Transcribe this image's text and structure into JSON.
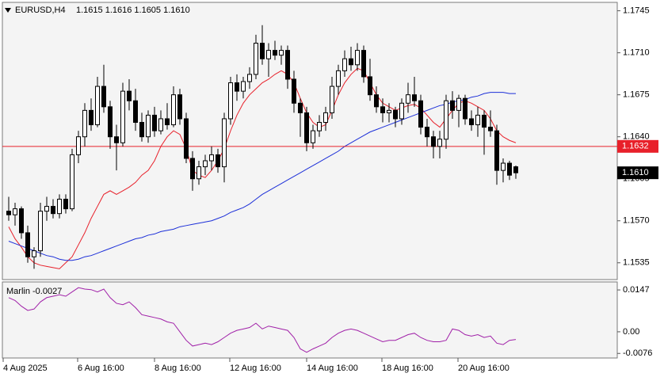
{
  "chart_data": [
    {
      "type": "candlestick",
      "title": "EURUSD,H4",
      "subtitle": "1.1615 1.1616 1.1605 1.1610",
      "ylim": [
        1.1521,
        1.1752
      ],
      "yticks": [
        1.1745,
        {
          "value": 1.171,
          "label": "1.1710"
        },
        1.1675,
        {
          "value": 1.164,
          "label": "1.1640"
        },
        1.1605,
        {
          "value": 1.157,
          "label": "1.1570"
        },
        1.1535
      ],
      "xlabels": [
        "4 Aug 2025",
        "6 Aug 16:00",
        "8 Aug 16:00",
        "12 Aug 16:00",
        "14 Aug 16:00",
        "18 Aug 16:00",
        "20 Aug 16:00"
      ],
      "up_color": "#ffffff",
      "down_color": "#000000",
      "ohlc": [
        [
          1.1578,
          1.159,
          1.157,
          1.1575
        ],
        [
          1.1575,
          1.1585,
          1.1566,
          1.158
        ],
        [
          1.158,
          1.1582,
          1.1555,
          1.156
        ],
        [
          1.156,
          1.1566,
          1.1535,
          1.154
        ],
        [
          1.154,
          1.1548,
          1.153,
          1.1545
        ],
        [
          1.1545,
          1.1585,
          1.154,
          1.1578
        ],
        [
          1.1578,
          1.159,
          1.157,
          1.1582
        ],
        [
          1.1582,
          1.1588,
          1.1572,
          1.1576
        ],
        [
          1.1576,
          1.1592,
          1.1572,
          1.1588
        ],
        [
          1.1588,
          1.1592,
          1.1576,
          1.158
        ],
        [
          1.158,
          1.163,
          1.1578,
          1.1625
        ],
        [
          1.1625,
          1.1645,
          1.1618,
          1.164
        ],
        [
          1.164,
          1.1668,
          1.1632,
          1.1662
        ],
        [
          1.1662,
          1.1672,
          1.1645,
          1.165
        ],
        [
          1.165,
          1.169,
          1.1648,
          1.1682
        ],
        [
          1.1682,
          1.17,
          1.166,
          1.1665
        ],
        [
          1.1665,
          1.167,
          1.163,
          1.164
        ],
        [
          1.164,
          1.165,
          1.1612,
          1.1635
        ],
        [
          1.1635,
          1.1685,
          1.1632,
          1.1678
        ],
        [
          1.1678,
          1.1688,
          1.1662,
          1.167
        ],
        [
          1.167,
          1.168,
          1.1645,
          1.1652
        ],
        [
          1.1652,
          1.166,
          1.1636,
          1.164
        ],
        [
          1.164,
          1.1662,
          1.1635,
          1.1658
        ],
        [
          1.1658,
          1.1665,
          1.164,
          1.1645
        ],
        [
          1.1645,
          1.1662,
          1.1642,
          1.1655
        ],
        [
          1.1655,
          1.1668,
          1.1646,
          1.165
        ],
        [
          1.165,
          1.1682,
          1.1648,
          1.1675
        ],
        [
          1.1675,
          1.168,
          1.165,
          1.1655
        ],
        [
          1.1655,
          1.166,
          1.1618,
          1.1622
        ],
        [
          1.1622,
          1.1628,
          1.1595,
          1.1605
        ],
        [
          1.1605,
          1.162,
          1.16,
          1.1615
        ],
        [
          1.1615,
          1.1625,
          1.1608,
          1.162
        ],
        [
          1.162,
          1.1632,
          1.1612,
          1.1625
        ],
        [
          1.1625,
          1.163,
          1.161,
          1.1615
        ],
        [
          1.1615,
          1.166,
          1.1602,
          1.1655
        ],
        [
          1.1655,
          1.169,
          1.165,
          1.1685
        ],
        [
          1.1685,
          1.1692,
          1.167,
          1.1678
        ],
        [
          1.1678,
          1.169,
          1.1672,
          1.1686
        ],
        [
          1.1686,
          1.1698,
          1.168,
          1.1692
        ],
        [
          1.1692,
          1.1725,
          1.1688,
          1.1718
        ],
        [
          1.1718,
          1.1733,
          1.17,
          1.1705
        ],
        [
          1.1705,
          1.1718,
          1.169,
          1.1712
        ],
        [
          1.1712,
          1.172,
          1.1704,
          1.1708
        ],
        [
          1.1708,
          1.1716,
          1.17,
          1.1712
        ],
        [
          1.1712,
          1.1716,
          1.168,
          1.1688
        ],
        [
          1.1688,
          1.1695,
          1.166,
          1.1668
        ],
        [
          1.1668,
          1.1672,
          1.164,
          1.166
        ],
        [
          1.166,
          1.1665,
          1.1628,
          1.1635
        ],
        [
          1.1635,
          1.165,
          1.163,
          1.1645
        ],
        [
          1.1645,
          1.1658,
          1.164,
          1.1652
        ],
        [
          1.1652,
          1.1665,
          1.1645,
          1.166
        ],
        [
          1.166,
          1.169,
          1.1655,
          1.1682
        ],
        [
          1.1682,
          1.17,
          1.1675,
          1.1695
        ],
        [
          1.1695,
          1.1712,
          1.169,
          1.1705
        ],
        [
          1.1705,
          1.1715,
          1.1695,
          1.17
        ],
        [
          1.17,
          1.1718,
          1.1695,
          1.1712
        ],
        [
          1.1712,
          1.1716,
          1.1685,
          1.169
        ],
        [
          1.169,
          1.1705,
          1.167,
          1.1675
        ],
        [
          1.1675,
          1.1682,
          1.166,
          1.1665
        ],
        [
          1.1665,
          1.1672,
          1.1652,
          1.166
        ],
        [
          1.166,
          1.1668,
          1.1652,
          1.1662
        ],
        [
          1.1662,
          1.1665,
          1.1648,
          1.1655
        ],
        [
          1.1655,
          1.1672,
          1.165,
          1.1668
        ],
        [
          1.1668,
          1.1685,
          1.166,
          1.1675
        ],
        [
          1.1675,
          1.169,
          1.1665,
          1.167
        ],
        [
          1.167,
          1.1675,
          1.1642,
          1.1648
        ],
        [
          1.1648,
          1.1655,
          1.1632,
          1.164
        ],
        [
          1.164,
          1.1645,
          1.1622,
          1.1632
        ],
        [
          1.1632,
          1.1645,
          1.1622,
          1.1638
        ],
        [
          1.1638,
          1.1675,
          1.163,
          1.167
        ],
        [
          1.167,
          1.1678,
          1.1655,
          1.1662
        ],
        [
          1.1662,
          1.1675,
          1.1648,
          1.1672
        ],
        [
          1.1672,
          1.1675,
          1.165,
          1.1655
        ],
        [
          1.1655,
          1.1662,
          1.1645,
          1.165
        ],
        [
          1.165,
          1.1665,
          1.164,
          1.1658
        ],
        [
          1.1658,
          1.1662,
          1.1625,
          1.1648
        ],
        [
          1.1648,
          1.1662,
          1.164,
          1.1645
        ],
        [
          1.1645,
          1.165,
          1.16,
          1.1612
        ],
        [
          1.1612,
          1.1622,
          1.1602,
          1.1618
        ],
        [
          1.1618,
          1.162,
          1.1604,
          1.1608
        ],
        [
          1.1615,
          1.1616,
          1.1605,
          1.161
        ]
      ],
      "overlays": [
        {
          "color": "#e8202a",
          "values": [
            1.1565,
            1.1555,
            1.1548,
            1.154,
            1.1535,
            1.1533,
            1.1532,
            1.1531,
            1.153,
            1.1535,
            1.154,
            1.155,
            1.156,
            1.1572,
            1.1582,
            1.1592,
            1.1595,
            1.1592,
            1.1595,
            1.1598,
            1.1602,
            1.1608,
            1.1612,
            1.162,
            1.1632,
            1.164,
            1.1645,
            1.1642,
            1.163,
            1.1612,
            1.1608,
            1.1606,
            1.1612,
            1.162,
            1.163,
            1.1645,
            1.1658,
            1.1668,
            1.1675,
            1.168,
            1.1685,
            1.1688,
            1.1692,
            1.1695,
            1.1692,
            1.1685,
            1.1672,
            1.166,
            1.1652,
            1.1648,
            1.165,
            1.1662,
            1.1675,
            1.1685,
            1.1692,
            1.1697,
            1.1695,
            1.1685,
            1.1675,
            1.1668,
            1.1665,
            1.1662,
            1.1664,
            1.1666,
            1.1667,
            1.1664,
            1.1658,
            1.1652,
            1.1648,
            1.1655,
            1.1662,
            1.1668,
            1.167,
            1.1668,
            1.1665,
            1.1662,
            1.1655,
            1.1645,
            1.164,
            1.1637,
            1.1635
          ]
        },
        {
          "color": "#1c2fd8",
          "values": [
            1.1553,
            1.1551,
            1.1549,
            1.1547,
            1.1545,
            1.1543,
            1.1541,
            1.154,
            1.1538,
            1.1537,
            1.1537,
            1.1538,
            1.154,
            1.1541,
            1.1543,
            1.1545,
            1.1547,
            1.1549,
            1.1551,
            1.1553,
            1.1555,
            1.1556,
            1.1558,
            1.1559,
            1.1561,
            1.1562,
            1.1563,
            1.1565,
            1.1566,
            1.1567,
            1.1568,
            1.1569,
            1.157,
            1.1572,
            1.1574,
            1.1577,
            1.1579,
            1.1581,
            1.1584,
            1.1588,
            1.1592,
            1.1595,
            1.1598,
            1.1601,
            1.1604,
            1.1607,
            1.161,
            1.1613,
            1.1616,
            1.1619,
            1.1622,
            1.1625,
            1.1628,
            1.1632,
            1.1635,
            1.1638,
            1.1641,
            1.1644,
            1.1646,
            1.1648,
            1.165,
            1.1652,
            1.1654,
            1.1656,
            1.1658,
            1.166,
            1.1662,
            1.1664,
            1.1666,
            1.1667,
            1.1669,
            1.167,
            1.1671,
            1.1673,
            1.1674,
            1.1676,
            1.1677,
            1.1677,
            1.1677,
            1.1676,
            1.1676
          ]
        }
      ],
      "hline": {
        "value": 1.1632,
        "color": "#e8202a"
      },
      "bid": {
        "value": 1.161,
        "label": "1.1610"
      }
    },
    {
      "type": "line",
      "name": "Marlin",
      "value": -0.0027,
      "color": "#a020a8",
      "ylim": [
        -0.0092,
        0.0175
      ],
      "yticks": [
        0.0147,
        {
          "value": 0,
          "label": "0.00"
        },
        -0.0076
      ],
      "values": [
        0.012,
        0.011,
        0.009,
        0.0075,
        0.008,
        0.0105,
        0.012,
        0.0125,
        0.013,
        0.0125,
        0.014,
        0.0155,
        0.015,
        0.0148,
        0.014,
        0.015,
        0.012,
        0.01,
        0.0095,
        0.0105,
        0.0085,
        0.006,
        0.0055,
        0.005,
        0.0045,
        0.0035,
        0.003,
        0,
        -0.003,
        -0.005,
        -0.0045,
        -0.004,
        -0.0045,
        -0.0035,
        -0.002,
        -0.0005,
        0.0005,
        0.001,
        0.0015,
        0.003,
        0.001,
        0.002,
        0.0015,
        0.001,
        0.0005,
        -0.002,
        -0.006,
        -0.0072,
        -0.006,
        -0.005,
        -0.004,
        -0.002,
        -0.0005,
        0.0005,
        0.001,
        0.0005,
        -0.0005,
        -0.0015,
        -0.0025,
        -0.0035,
        -0.003,
        -0.003,
        -0.002,
        -0.001,
        -0.0005,
        -0.002,
        -0.003,
        -0.0035,
        -0.0035,
        -0.003,
        0.001,
        0.0005,
        -0.001,
        -0.0015,
        -0.001,
        -0.002,
        -0.0015,
        -0.004,
        -0.0045,
        -0.003,
        -0.0027
      ]
    }
  ]
}
